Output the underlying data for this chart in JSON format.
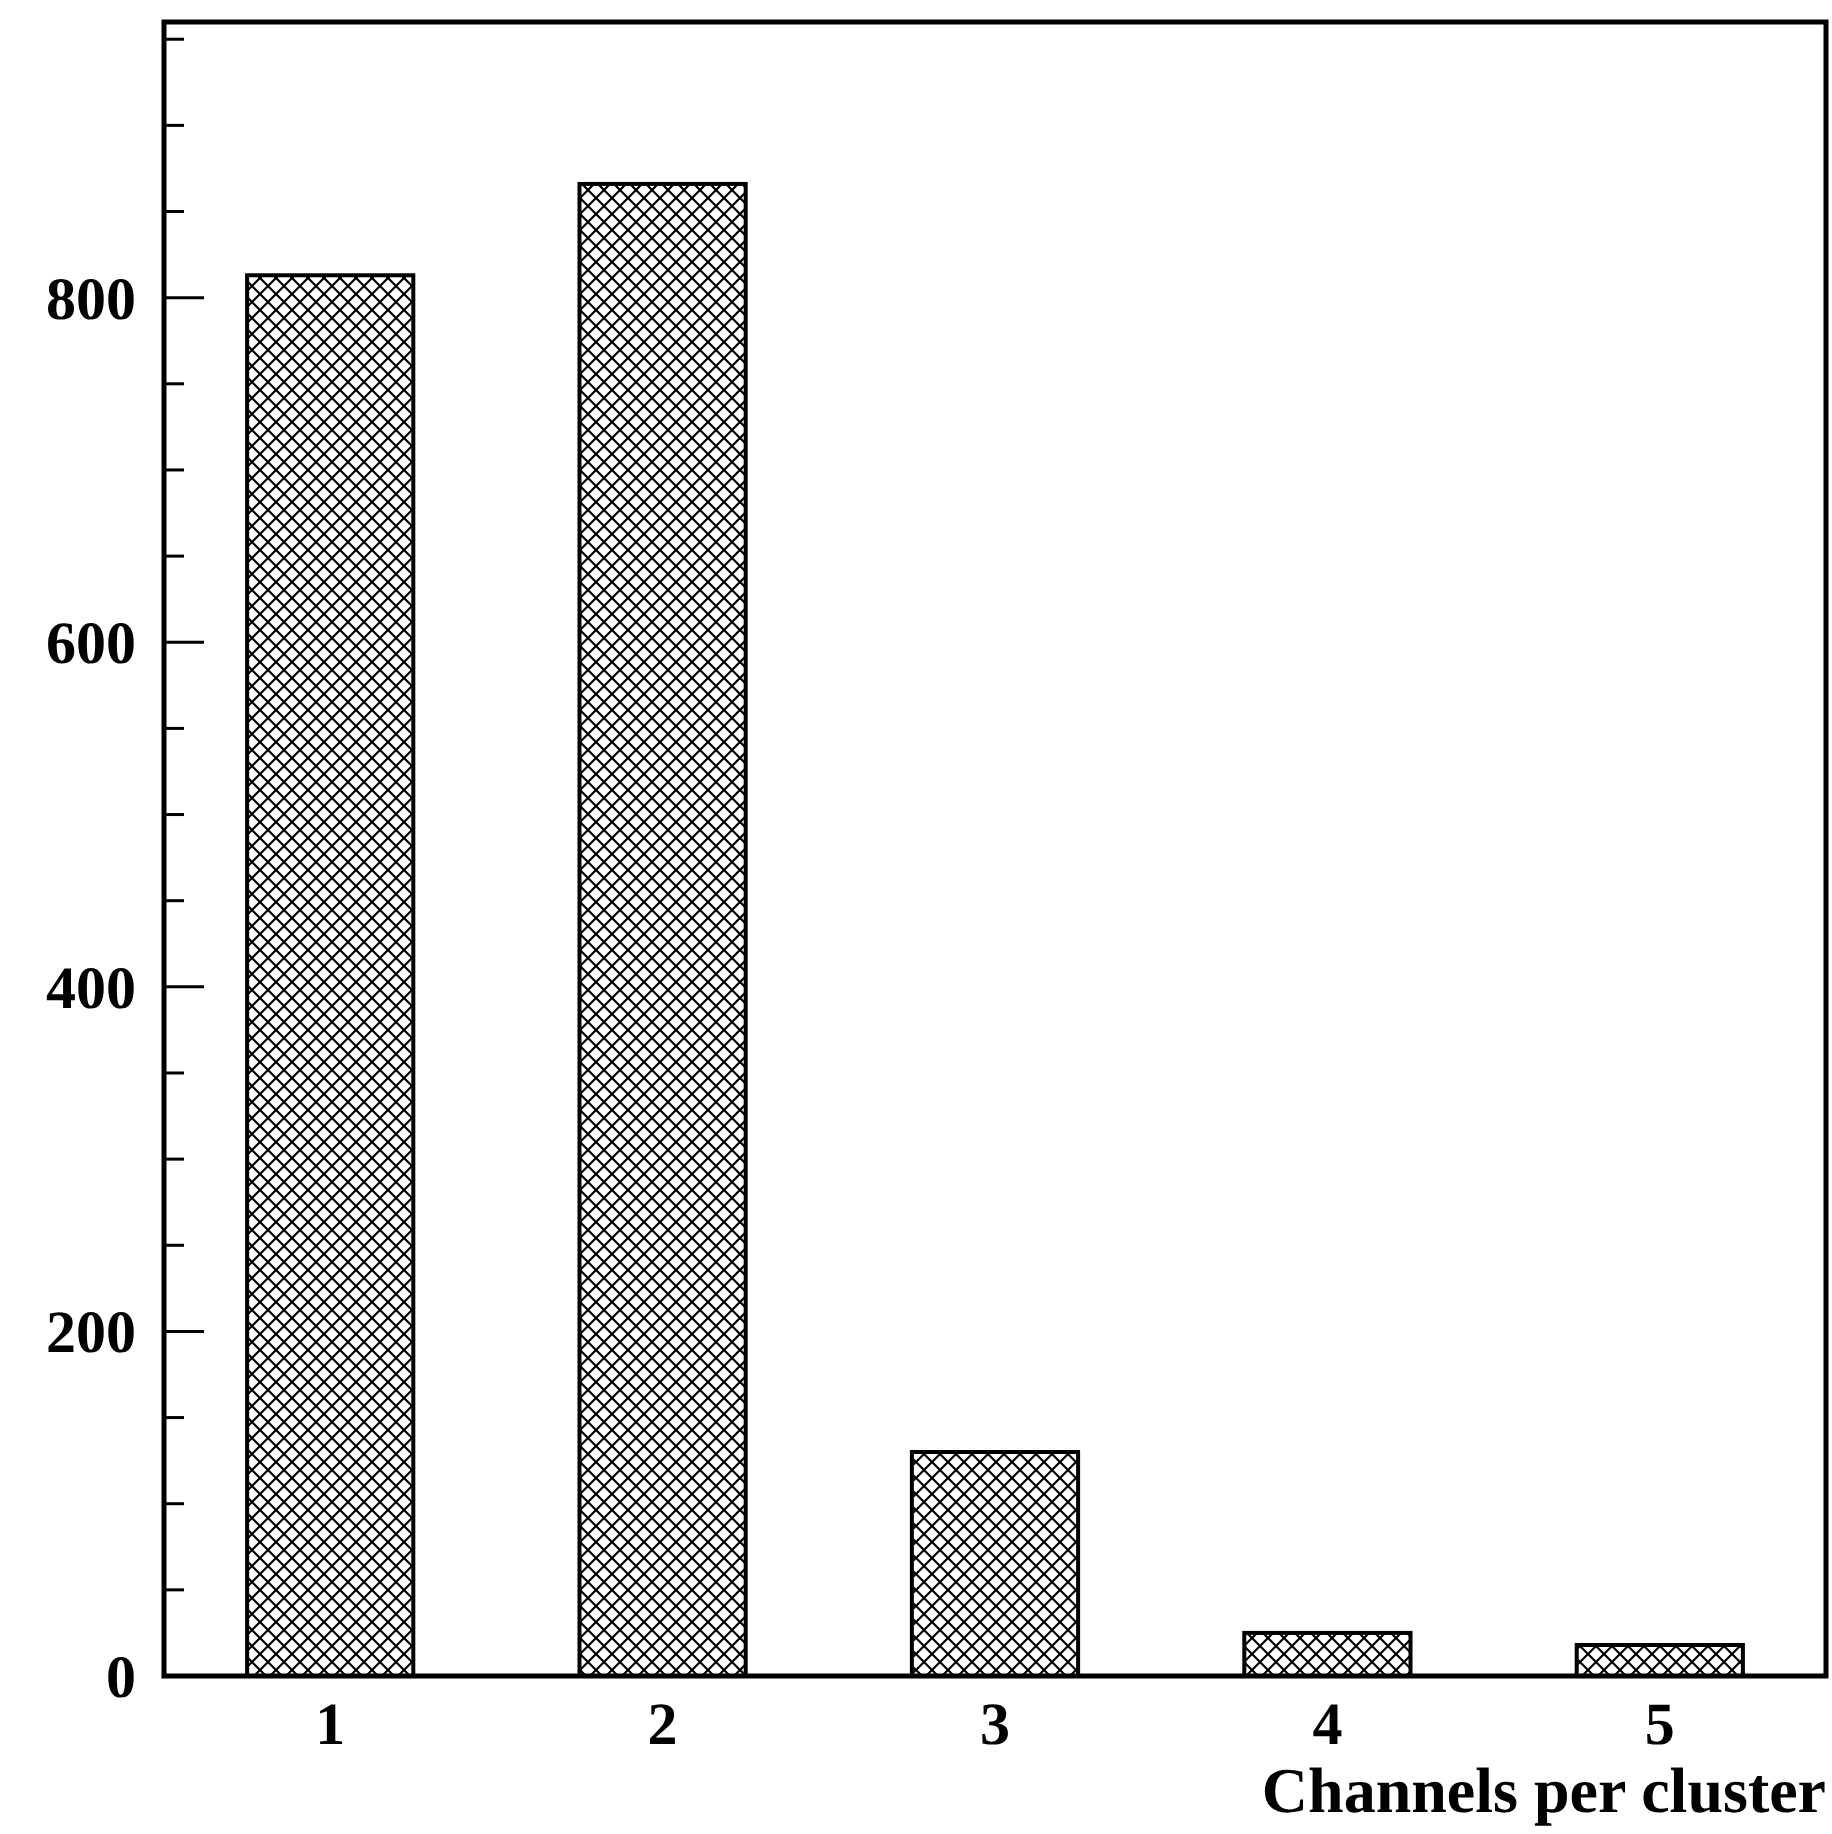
{
  "chart_data": {
    "type": "bar",
    "xlabel": "Channels per cluster",
    "categories": [
      "1",
      "2",
      "3",
      "4",
      "5"
    ],
    "values": [
      813,
      866,
      130,
      25,
      18
    ],
    "color": "#000000",
    "ylim": [
      0,
      960
    ],
    "yticks": [
      0,
      {
        "value": 50,
        "label": null
      },
      {
        "value": 100,
        "label": null
      },
      {
        "value": 150,
        "label": null
      },
      200,
      {
        "value": 250,
        "label": null
      },
      {
        "value": 300,
        "label": null
      },
      {
        "value": 350,
        "label": null
      },
      400,
      {
        "value": 450,
        "label": null
      },
      {
        "value": 500,
        "label": null
      },
      {
        "value": 550,
        "label": null
      },
      600,
      {
        "value": 650,
        "label": null
      },
      {
        "value": 700,
        "label": null
      },
      {
        "value": 750,
        "label": null
      },
      800,
      {
        "value": 850,
        "label": null
      },
      {
        "value": 900,
        "label": null
      },
      {
        "value": 950,
        "label": null
      }
    ],
    "grid": false
  }
}
